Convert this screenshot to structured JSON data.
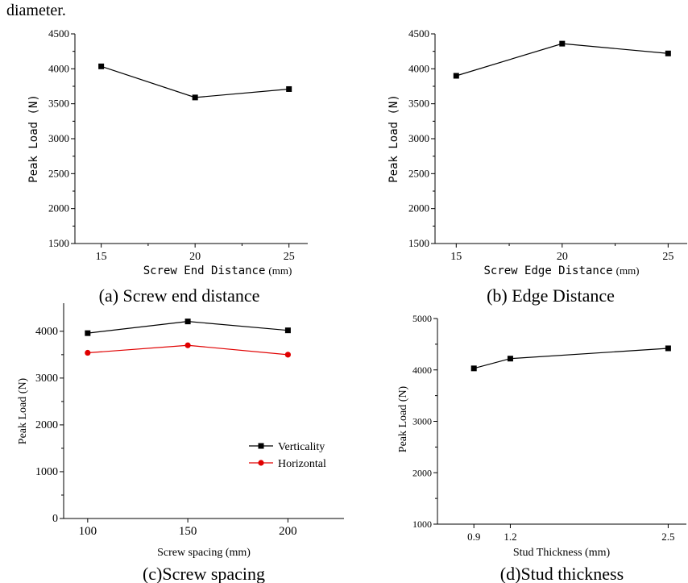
{
  "intro_text": "diameter.",
  "chart_data": [
    {
      "id": "a",
      "type": "line",
      "caption": "(a) Screw end distance",
      "xlabel_main": "Screw End Distance",
      "xlabel_unit": "(mm)",
      "ylabel": "Peak Load (N)",
      "x": [
        15,
        20,
        25
      ],
      "xticks": [
        15,
        20,
        25
      ],
      "xlim": [
        13.6,
        26
      ],
      "ylim": [
        1500,
        4500
      ],
      "yticks": [
        1500,
        2000,
        2500,
        3000,
        3500,
        4000,
        4500
      ],
      "series": [
        {
          "values": [
            4035,
            3590,
            3710
          ],
          "color": "#000000",
          "marker": "square"
        }
      ]
    },
    {
      "id": "b",
      "type": "line",
      "caption": "(b) Edge Distance",
      "xlabel_main": "Screw Edge Distance",
      "xlabel_unit": "(mm)",
      "ylabel": "Peak Load (N)",
      "x": [
        15,
        20,
        25
      ],
      "xticks": [
        15,
        20,
        25
      ],
      "xlim": [
        14,
        25.9
      ],
      "ylim": [
        1500,
        4500
      ],
      "yticks": [
        1500,
        2000,
        2500,
        3000,
        3500,
        4000,
        4500
      ],
      "series": [
        {
          "values": [
            3900,
            4360,
            4220
          ],
          "color": "#000000",
          "marker": "square"
        }
      ]
    },
    {
      "id": "c",
      "type": "line",
      "caption": "(c)Screw spacing",
      "xlabel": "Screw spacing (mm)",
      "ylabel": "Peak Load (N)",
      "x": [
        100,
        150,
        200
      ],
      "xticks": [
        100,
        150,
        200
      ],
      "xlim": [
        88,
        228
      ],
      "ylim": [
        0,
        4600
      ],
      "yticks": [
        0,
        1000,
        2000,
        3000,
        4000
      ],
      "legend_position": "lower-right",
      "series": [
        {
          "name": "Verticality",
          "values": [
            3960,
            4210,
            4020
          ],
          "color": "#000000",
          "marker": "square"
        },
        {
          "name": "Horizontal",
          "values": [
            3540,
            3700,
            3500
          ],
          "color": "#e00000",
          "marker": "circle"
        }
      ]
    },
    {
      "id": "d",
      "type": "line",
      "caption": "(d)Stud thickness",
      "xlabel": "Stud Thickness (mm)",
      "ylabel": "Peak Load (N)",
      "x": [
        0.9,
        1.2,
        2.5
      ],
      "xticks": [
        0.9,
        1.2,
        2.5
      ],
      "xtick_labels": [
        "0.9",
        "1.2",
        "2.5"
      ],
      "xlim": [
        0.6,
        2.65
      ],
      "ylim": [
        1000,
        5000
      ],
      "yticks": [
        1000,
        2000,
        3000,
        4000,
        5000
      ],
      "series": [
        {
          "values": [
            4030,
            4220,
            4420
          ],
          "color": "#000000",
          "marker": "square"
        }
      ]
    }
  ]
}
